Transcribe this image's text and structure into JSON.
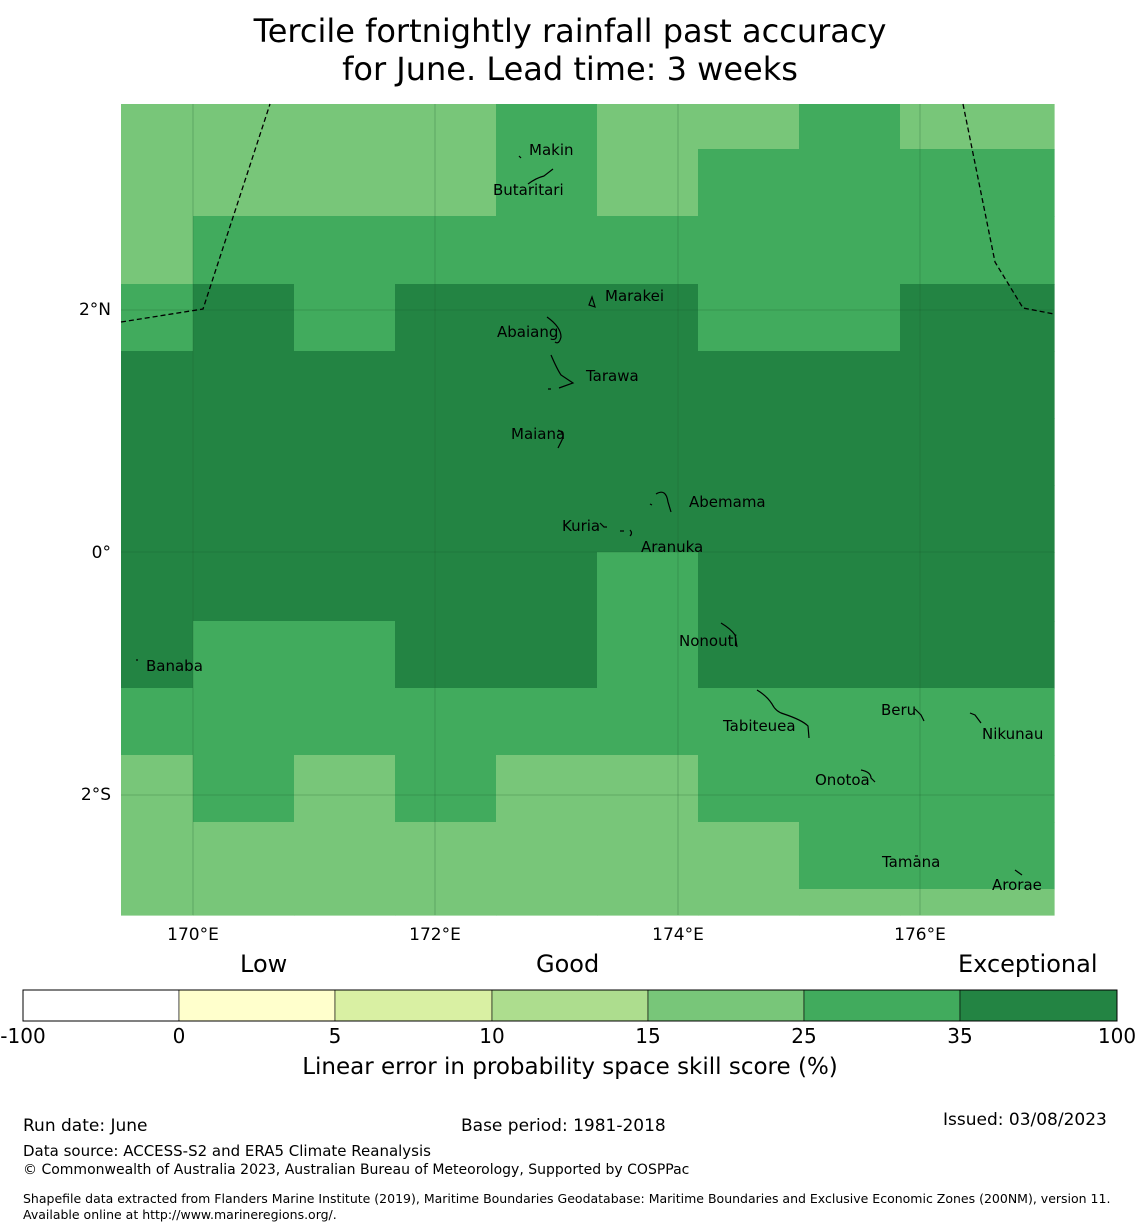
{
  "title": {
    "line1": "Tercile fortnightly rainfall past accuracy",
    "line2": "for June. Lead time: 3 weeks"
  },
  "map": {
    "x_ticks": [
      "170°E",
      "172°E",
      "174°E",
      "176°E"
    ],
    "y_ticks": [
      "2°N",
      "0°",
      "2°S"
    ],
    "places": [
      {
        "name": "Makin"
      },
      {
        "name": "Butaritari"
      },
      {
        "name": "Marakei"
      },
      {
        "name": "Abaiang"
      },
      {
        "name": "Tarawa"
      },
      {
        "name": "Maiana"
      },
      {
        "name": "Abemama"
      },
      {
        "name": "Kuria"
      },
      {
        "name": "Aranuka"
      },
      {
        "name": "Banaba"
      },
      {
        "name": "Nonouti"
      },
      {
        "name": "Tabiteuea"
      },
      {
        "name": "Beru"
      },
      {
        "name": "Nikunau"
      },
      {
        "name": "Onotoa"
      },
      {
        "name": "Tamana"
      },
      {
        "name": "Arorae"
      }
    ],
    "skill_grid": {
      "note_levels": "class index 0..2 = 15-25, 25-35, 35-100",
      "rows": [
        [
          0,
          0,
          0,
          0,
          1,
          0,
          0,
          1,
          0
        ],
        [
          0,
          0,
          0,
          0,
          1,
          0,
          1,
          1,
          1
        ],
        [
          0,
          1,
          1,
          1,
          1,
          1,
          1,
          1,
          1
        ],
        [
          1,
          2,
          1,
          2,
          2,
          2,
          1,
          1,
          2
        ],
        [
          2,
          2,
          2,
          2,
          2,
          2,
          2,
          2,
          2
        ],
        [
          2,
          2,
          2,
          2,
          2,
          2,
          2,
          2,
          2
        ],
        [
          2,
          2,
          2,
          2,
          2,
          2,
          2,
          2,
          2
        ],
        [
          2,
          2,
          2,
          2,
          2,
          1,
          2,
          2,
          2
        ],
        [
          2,
          1,
          1,
          2,
          2,
          1,
          2,
          2,
          2
        ],
        [
          1,
          1,
          1,
          1,
          1,
          1,
          1,
          1,
          1
        ],
        [
          0,
          1,
          0,
          1,
          0,
          0,
          1,
          1,
          1
        ],
        [
          0,
          0,
          0,
          0,
          0,
          0,
          0,
          1,
          1
        ],
        [
          0,
          0,
          0,
          0,
          0,
          0,
          0,
          0,
          0
        ]
      ]
    }
  },
  "colorbar": {
    "categories": [
      "Low",
      "Good",
      "Exceptional"
    ],
    "ticks": [
      "-100",
      "0",
      "5",
      "10",
      "15",
      "25",
      "35",
      "100"
    ],
    "colors": [
      "#ffffff",
      "#ffffcc",
      "#d9f0a3",
      "#addd8e",
      "#78c679",
      "#41ab5d",
      "#238443"
    ],
    "caption": "Linear error in probability space skill score (%)"
  },
  "footer": {
    "run_date": "Run date: June",
    "base_period": "Base period: 1981-2018",
    "issued": "Issued: 03/08/2023",
    "data_source": "Data source: ACCESS-S2 and ERA5 Climate Reanalysis",
    "copyright": "© Commonwealth of Australia 2023, Australian Bureau of Meteorology, Supported by COSPPac",
    "shapefile": "Shapefile data extracted from Flanders Marine Institute (2019), Maritime Boundaries Geodatabase: Maritime Boundaries and Exclusive Economic Zones (200NM), version 11. Available online at http://www.marineregions.org/."
  }
}
